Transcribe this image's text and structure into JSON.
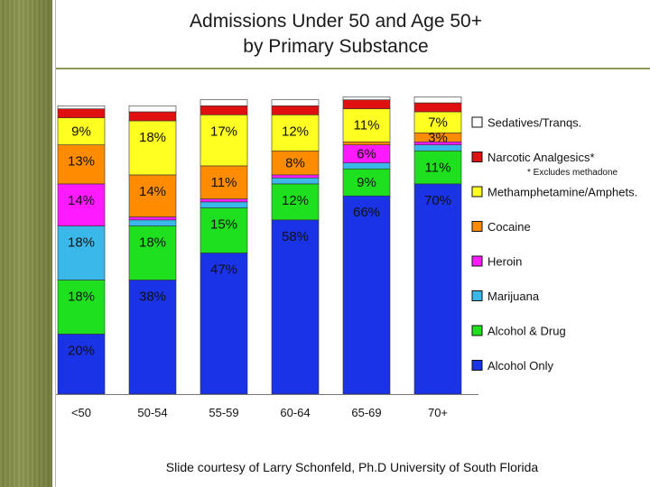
{
  "page": {
    "title_line1": "Admissions Under 50 and Age 50+",
    "title_line2": "by Primary Substance",
    "credit": "Slide courtesy of Larry Schonfeld, Ph.D University of South Florida"
  },
  "chart_data": {
    "type": "bar",
    "stacked": true,
    "title": "Admissions Under 50 and Age 50+ by Primary Substance",
    "xlabel": "",
    "ylabel": "",
    "ylim": [
      0,
      100
    ],
    "categories": [
      "<50",
      "50-54",
      "55-59",
      "60-64",
      "65-69",
      "70+"
    ],
    "series": [
      {
        "name": "Alcohol Only",
        "color": "#1a33e6",
        "values": [
          20,
          38,
          47,
          58,
          66,
          70
        ],
        "labels": [
          "20%",
          "38%",
          "47%",
          "58%",
          "66%",
          "70%"
        ]
      },
      {
        "name": "Alcohol & Drug",
        "color": "#1ee01e",
        "values": [
          18,
          18,
          15,
          12,
          9,
          11
        ],
        "labels": [
          "18%",
          "18%",
          "15%",
          "12%",
          "9%",
          "11%"
        ]
      },
      {
        "name": "Marijuana",
        "color": "#3ab8ea",
        "values": [
          18,
          2,
          2,
          2,
          2,
          2
        ],
        "labels": [
          "18%",
          "",
          "",
          "",
          "",
          ""
        ]
      },
      {
        "name": "Heroin",
        "color": "#ff1aff",
        "values": [
          14,
          1,
          1,
          1,
          6,
          1
        ],
        "labels": [
          "14%",
          "",
          "",
          "",
          "6%",
          ""
        ]
      },
      {
        "name": "Cocaine",
        "color": "#ff8c00",
        "values": [
          13,
          14,
          11,
          8,
          1,
          3
        ],
        "labels": [
          "13%",
          "14%",
          "11%",
          "8%",
          "",
          "3%"
        ]
      },
      {
        "name": "Methamphetamine/Amphets.",
        "color": "#ffff22",
        "values": [
          9,
          18,
          17,
          12,
          11,
          7
        ],
        "labels": [
          "9%",
          "18%",
          "17%",
          "12%",
          "11%",
          "7%"
        ]
      },
      {
        "name": "Narcotic Analgesics*",
        "color": "#e01010",
        "values": [
          3,
          3,
          3,
          3,
          3,
          3
        ],
        "labels": [
          "",
          "",
          "",
          "",
          "",
          ""
        ]
      },
      {
        "name": "Sedatives/Tranqs.",
        "color": "#ffffff",
        "values": [
          1,
          2,
          2,
          2,
          1,
          2
        ],
        "labels": [
          "",
          "",
          "",
          "",
          "",
          ""
        ]
      }
    ],
    "legend": "right",
    "legend_order": [
      "Sedatives/Tranqs.",
      "Narcotic Analgesics*",
      "Methamphetamine/Amphets.",
      "Cocaine",
      "Heroin",
      "Marijuana",
      "Alcohol & Drug",
      "Alcohol Only"
    ],
    "annotations": [
      "* Excludes methadone"
    ]
  }
}
